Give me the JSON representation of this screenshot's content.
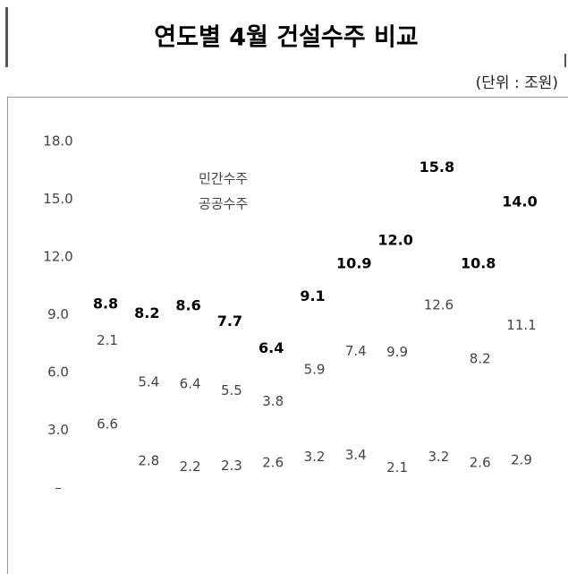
{
  "chart_data": {
    "type": "bar",
    "stacked": true,
    "title": "연도별 4월 건설수주 비교",
    "unit": "(단위 : 조원)",
    "series": [
      {
        "name": "민간수주",
        "values": [
          2.1,
          5.4,
          6.4,
          5.5,
          3.8,
          5.9,
          7.4,
          9.9,
          12.6,
          8.2,
          11.1
        ]
      },
      {
        "name": "공공수주",
        "values": [
          6.6,
          2.8,
          2.2,
          2.3,
          2.6,
          3.2,
          3.4,
          2.1,
          3.2,
          2.6,
          2.9
        ]
      }
    ],
    "totals": {
      "values": [
        8.8,
        8.2,
        8.6,
        7.7,
        6.4,
        9.1,
        10.9,
        12.0,
        15.8,
        10.8,
        14.0
      ],
      "value_labels": [
        "8.8",
        "8.2",
        "8.6",
        "7.7",
        "6.4",
        "9.1",
        "10.9",
        "12.0",
        "15.8",
        "10.8",
        "14.0"
      ]
    },
    "ylim": [
      0,
      18
    ],
    "yticks": [
      {
        "value": 0,
        "label": "–"
      },
      {
        "value": 3,
        "label": "3.0"
      },
      {
        "value": 6,
        "label": "6.0"
      },
      {
        "value": 9,
        "label": "9.0"
      },
      {
        "value": 12,
        "label": "12.0"
      },
      {
        "value": 15,
        "label": "15.0"
      },
      {
        "value": 18,
        "label": "18.0"
      }
    ]
  }
}
